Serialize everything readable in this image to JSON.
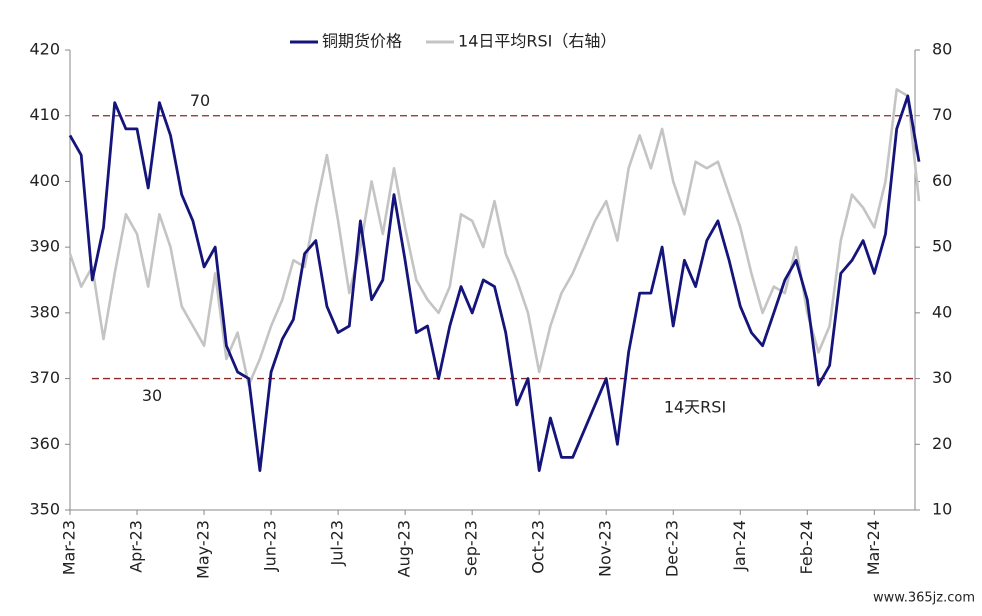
{
  "chart_data": {
    "type": "line",
    "categories": [
      "Mar-23",
      null,
      null,
      null,
      null,
      null,
      "Apr-23",
      null,
      null,
      null,
      null,
      null,
      "May-23",
      null,
      null,
      null,
      null,
      null,
      "Jun-23",
      null,
      null,
      null,
      null,
      null,
      "Jul-23",
      null,
      null,
      null,
      null,
      null,
      "Aug-23",
      null,
      null,
      null,
      null,
      null,
      "Sep-23",
      null,
      null,
      null,
      null,
      null,
      "Oct-23",
      null,
      null,
      null,
      null,
      null,
      "Nov-23",
      null,
      null,
      null,
      null,
      null,
      "Dec-23",
      null,
      null,
      null,
      null,
      null,
      "Jan-24",
      null,
      null,
      null,
      null,
      null,
      "Feb-24",
      null,
      null,
      null,
      null,
      null,
      "Mar-24",
      null,
      null,
      null,
      null
    ],
    "series": [
      {
        "name": "铜期货价格",
        "color": "#14147a",
        "axis": "y",
        "values": [
          407,
          404,
          385,
          393,
          412,
          408,
          408,
          399,
          412,
          407,
          398,
          394,
          387,
          390,
          375,
          371,
          370,
          356,
          371,
          376,
          379,
          389,
          391,
          381,
          377,
          378,
          394,
          382,
          385,
          398,
          388,
          377,
          378,
          370,
          378,
          384,
          380,
          385,
          384,
          377,
          366,
          370,
          356,
          364,
          358,
          358,
          362,
          366,
          370,
          360,
          374,
          383,
          383,
          390,
          378,
          388,
          384,
          391,
          394,
          388,
          381,
          377,
          375,
          380,
          385,
          388,
          382,
          369,
          372,
          386,
          388,
          391,
          386,
          392,
          408,
          413,
          403
        ]
      },
      {
        "name": "14日平均RSI（右轴）",
        "color": "#c4c4c4",
        "axis": "y2",
        "values": [
          49,
          44,
          47,
          36,
          46,
          55,
          52,
          44,
          55,
          50,
          41,
          38,
          35,
          46,
          33,
          37,
          29,
          33,
          38,
          42,
          48,
          47,
          56,
          64,
          54,
          43,
          50,
          60,
          52,
          62,
          53,
          45,
          42,
          40,
          44,
          55,
          54,
          50,
          57,
          49,
          45,
          40,
          31,
          38,
          43,
          46,
          50,
          54,
          57,
          51,
          62,
          67,
          62,
          68,
          60,
          55,
          63,
          62,
          63,
          58,
          53,
          46,
          40,
          44,
          43,
          50,
          40,
          34,
          38,
          51,
          58,
          56,
          53,
          60,
          74,
          73,
          57
        ]
      }
    ],
    "ylim": [
      350,
      420
    ],
    "yticks": [
      350,
      360,
      370,
      380,
      390,
      400,
      410,
      420
    ],
    "y2lim": [
      10,
      80
    ],
    "y2ticks": [
      10,
      20,
      30,
      40,
      50,
      60,
      70,
      80
    ],
    "reference_lines": [
      70,
      30
    ],
    "reference_color": "#8b2a2a",
    "annotation": "14天RSI",
    "watermark": "www.365jz.com",
    "legend": "top"
  }
}
